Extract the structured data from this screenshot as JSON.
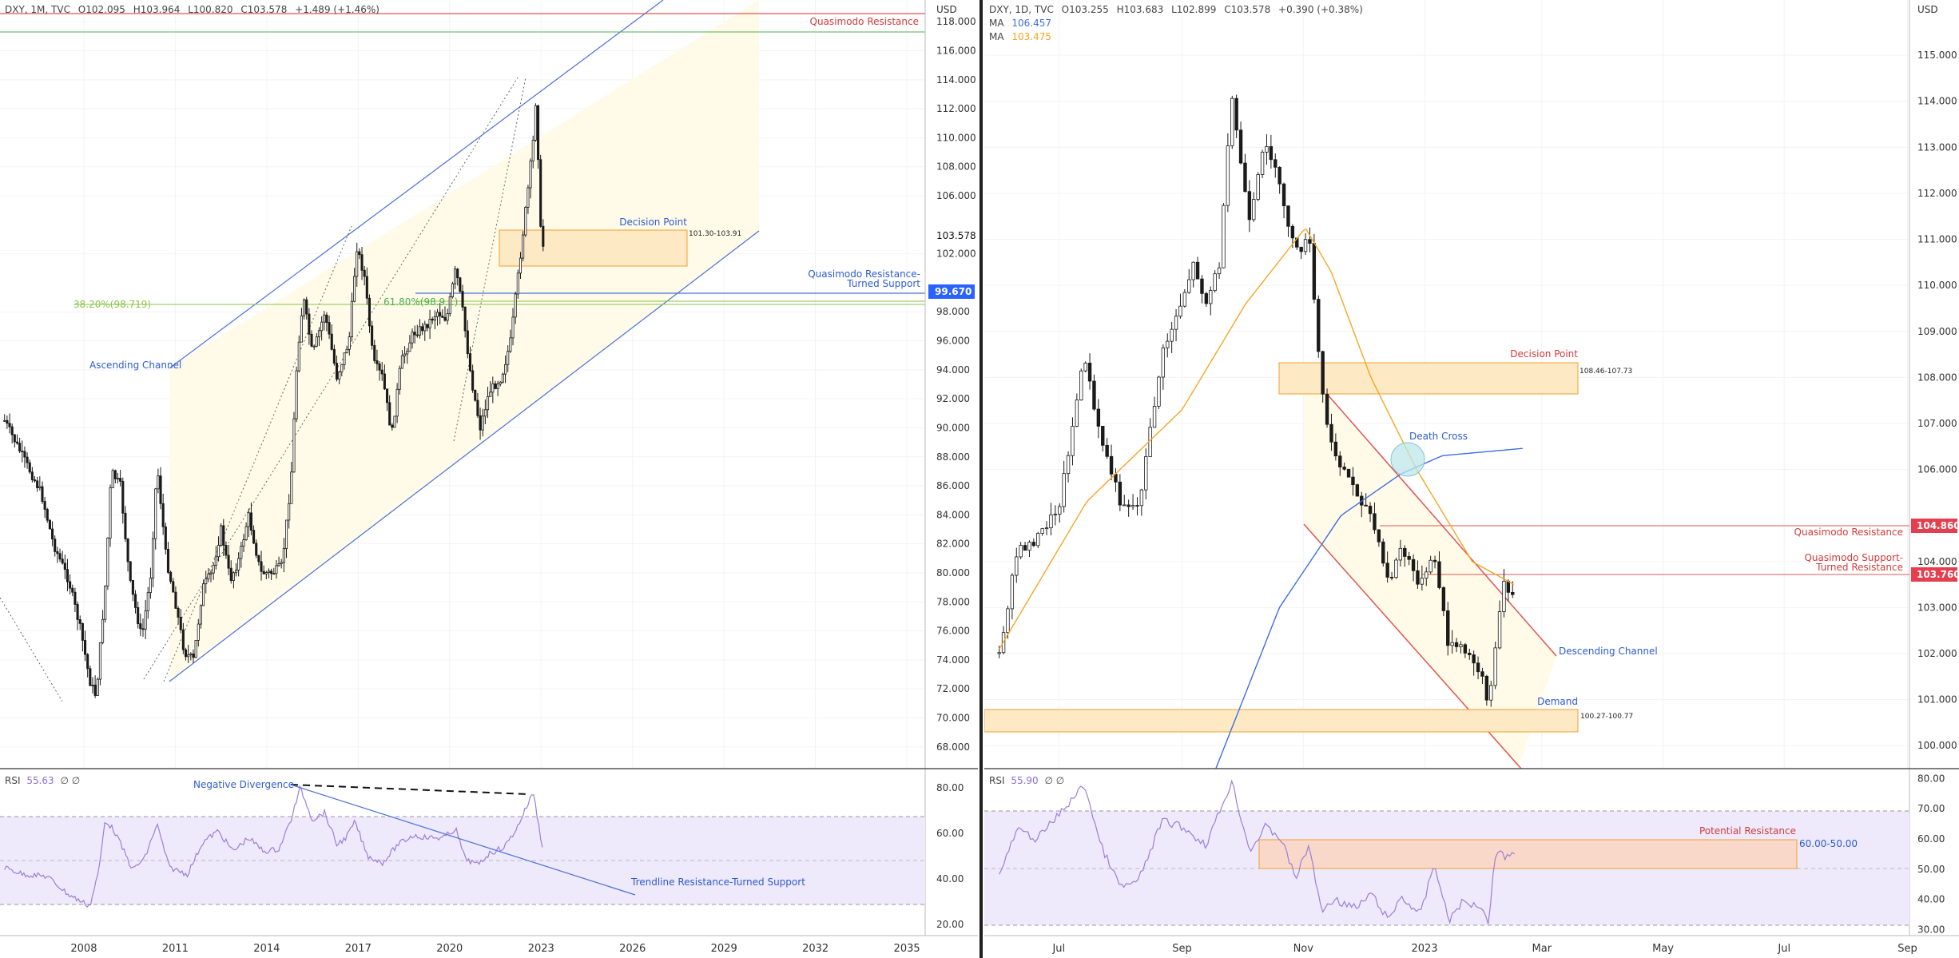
{
  "colors": {
    "candle": "#1a1a1a",
    "fib": "#8bc34a",
    "blue_line": "#4a6fd6",
    "red_line": "#e05555",
    "zone_fill": "#fde9c4",
    "zone_stroke": "#f0a030",
    "channel_fill": "#fffbe8",
    "rsi_band": "#eee9fb",
    "rsi_line": "#9b7fd9",
    "ma_blue": "#3d6fe0",
    "ma_orange": "#f5a623",
    "label_blue": "#2f5bd3",
    "label_red": "#d23b3b",
    "badge_blue": "#2962ff",
    "badge_red": "#e53e4f"
  },
  "left": {
    "header": {
      "symbol": "DXY, 1M, TVC",
      "o": "O102.095",
      "h": "H103.964",
      "l": "L100.820",
      "c": "C103.578",
      "chg": "+1.489 (+1.46%)"
    },
    "axis_unit": "USD",
    "price_badge": "103.578",
    "support_badge": "99.670",
    "labels": {
      "qm_resistance": "Quasimodo Resistance",
      "decision_point": "Decision Point",
      "decision_range": "101.30-103.91",
      "qm_turned_1": "Quasimodo Resistance-",
      "qm_turned_2": "Turned Support",
      "fib38": "38.20%(98.719)",
      "fib61": "61.80%(98.9...)",
      "ascending": "Ascending Channel",
      "neg_div": "Negative Divergence",
      "trend_rs": "Trendline Resistance-Turned Support"
    },
    "rsi_header": {
      "name": "RSI",
      "value": "55.63",
      "extra": "∅ ∅"
    }
  },
  "right": {
    "header": {
      "symbol": "DXY, 1D, TVC",
      "o": "O103.255",
      "h": "H103.683",
      "l": "L102.899",
      "c": "C103.578",
      "chg": "+0.390 (+0.38%)"
    },
    "ma1": {
      "name": "MA",
      "value": "106.457"
    },
    "ma2": {
      "name": "MA",
      "value": "103.475"
    },
    "axis_unit": "USD",
    "badge_qm": "104.860",
    "badge_qm_turned": "103.760",
    "labels": {
      "decision_point": "Decision Point",
      "decision_range": "108.46-107.73",
      "death_cross": "Death Cross",
      "qm_resistance": "Quasimodo Resistance",
      "qm_support_1": "Quasimodo Support-",
      "qm_support_2": "Turned Resistance",
      "desc_channel": "Descending Channel",
      "demand": "Demand",
      "demand_range": "100.27-100.77",
      "potential_res": "Potential Resistance",
      "rsi_range": "60.00-50.00"
    },
    "rsi_header": {
      "name": "RSI",
      "value": "55.90",
      "extra": "∅ ∅"
    }
  },
  "chart_data": [
    {
      "type": "line",
      "title": "DXY, 1M, TVC",
      "xlabel": "",
      "ylabel": "",
      "x_ticks": [
        "2008",
        "2011",
        "2014",
        "2017",
        "2020",
        "2023",
        "2026",
        "2029",
        "2032",
        "2035"
      ],
      "y_ticks": [
        "68.000",
        "70.000",
        "72.000",
        "74.000",
        "76.000",
        "78.000",
        "80.000",
        "82.000",
        "84.000",
        "86.000",
        "88.000",
        "90.000",
        "92.000",
        "94.000",
        "96.000",
        "98.000",
        "102.000",
        "106.000",
        "108.000",
        "110.000",
        "112.000",
        "114.000",
        "116.000",
        "118.000"
      ],
      "ylim": [
        66.5,
        119.5
      ],
      "series": [
        {
          "values": [
            [
              2005.4,
              90.5
            ],
            [
              2006.0,
              88.0
            ],
            [
              2006.6,
              85.5
            ],
            [
              2007.0,
              82.0
            ],
            [
              2007.5,
              79.5
            ],
            [
              2007.9,
              76.0
            ],
            [
              2008.2,
              72.5
            ],
            [
              2008.4,
              71.5
            ],
            [
              2008.7,
              79.0
            ],
            [
              2008.9,
              87.0
            ],
            [
              2009.2,
              86.0
            ],
            [
              2009.5,
              79.5
            ],
            [
              2009.9,
              75.5
            ],
            [
              2010.2,
              80.0
            ],
            [
              2010.4,
              87.5
            ],
            [
              2010.7,
              81.0
            ],
            [
              2011.0,
              78.0
            ],
            [
              2011.3,
              74.5
            ],
            [
              2011.6,
              74.0
            ],
            [
              2011.9,
              79.0
            ],
            [
              2012.2,
              80.0
            ],
            [
              2012.5,
              83.0
            ],
            [
              2012.8,
              79.5
            ],
            [
              2013.1,
              81.0
            ],
            [
              2013.4,
              84.0
            ],
            [
              2013.8,
              80.0
            ],
            [
              2014.2,
              80.0
            ],
            [
              2014.5,
              80.5
            ],
            [
              2014.8,
              86.5
            ],
            [
              2015.0,
              95.0
            ],
            [
              2015.2,
              99.0
            ],
            [
              2015.5,
              95.0
            ],
            [
              2015.9,
              98.0
            ],
            [
              2016.3,
              93.5
            ],
            [
              2016.7,
              96.0
            ],
            [
              2016.95,
              102.5
            ],
            [
              2017.2,
              100.5
            ],
            [
              2017.5,
              94.5
            ],
            [
              2017.8,
              93.5
            ],
            [
              2018.1,
              89.5
            ],
            [
              2018.4,
              94.5
            ],
            [
              2018.8,
              96.5
            ],
            [
              2019.2,
              97.0
            ],
            [
              2019.6,
              98.0
            ],
            [
              2019.9,
              97.5
            ],
            [
              2020.2,
              101.0
            ],
            [
              2020.4,
              98.5
            ],
            [
              2020.7,
              93.5
            ],
            [
              2021.0,
              90.0
            ],
            [
              2021.3,
              92.5
            ],
            [
              2021.7,
              93.5
            ],
            [
              2022.0,
              96.0
            ],
            [
              2022.3,
              101.5
            ],
            [
              2022.6,
              107.0
            ],
            [
              2022.75,
              110.0
            ],
            [
              2022.85,
              113.5
            ],
            [
              2022.95,
              104.5
            ],
            [
              2023.05,
              102.0
            ],
            [
              2023.1,
              103.6
            ]
          ]
        }
      ],
      "rsi": {
        "y_ticks": [
          "20.00",
          "40.00",
          "60.00",
          "80.00"
        ],
        "ylim": [
          15,
          88
        ],
        "values": [
          [
            2005.4,
            45
          ],
          [
            2006.0,
            42
          ],
          [
            2006.8,
            41
          ],
          [
            2007.5,
            33
          ],
          [
            2008.2,
            28
          ],
          [
            2008.5,
            44
          ],
          [
            2008.7,
            66
          ],
          [
            2009.0,
            61
          ],
          [
            2009.6,
            44
          ],
          [
            2010.0,
            49
          ],
          [
            2010.4,
            64
          ],
          [
            2010.8,
            45
          ],
          [
            2011.4,
            42
          ],
          [
            2011.9,
            56
          ],
          [
            2012.4,
            61
          ],
          [
            2012.9,
            52
          ],
          [
            2013.4,
            58
          ],
          [
            2013.9,
            52
          ],
          [
            2014.4,
            53
          ],
          [
            2014.8,
            66
          ],
          [
            2015.1,
            80
          ],
          [
            2015.5,
            66
          ],
          [
            2015.9,
            69
          ],
          [
            2016.3,
            55
          ],
          [
            2016.6,
            58
          ],
          [
            2016.9,
            65
          ],
          [
            2017.3,
            50
          ],
          [
            2017.8,
            47
          ],
          [
            2018.3,
            55
          ],
          [
            2018.8,
            59
          ],
          [
            2019.3,
            58
          ],
          [
            2019.8,
            58
          ],
          [
            2020.2,
            62
          ],
          [
            2020.5,
            49
          ],
          [
            2020.9,
            46
          ],
          [
            2021.3,
            51
          ],
          [
            2021.8,
            54
          ],
          [
            2022.2,
            62
          ],
          [
            2022.5,
            71
          ],
          [
            2022.75,
            78
          ],
          [
            2022.95,
            61
          ],
          [
            2023.05,
            54
          ],
          [
            2023.1,
            56
          ]
        ]
      }
    },
    {
      "type": "line",
      "title": "DXY, 1D, TVC",
      "xlabel": "",
      "ylabel": "",
      "x_ticks": [
        "Jul",
        "Sep",
        "Nov",
        "2023",
        "Mar",
        "May",
        "Jul",
        "Sep"
      ],
      "y_ticks": [
        "100.000",
        "101.000",
        "102.000",
        "103.000",
        "104.000",
        "106.000",
        "107.000",
        "108.000",
        "109.000",
        "110.000",
        "111.000",
        "112.000",
        "113.000",
        "114.000",
        "115.000"
      ],
      "ylim": [
        99.5,
        116.2
      ],
      "series": [
        {
          "values": [
            [
              "2022-06-01",
              102.0
            ],
            [
              "2022-06-10",
              104.2
            ],
            [
              "2022-06-20",
              104.5
            ],
            [
              "2022-07-01",
              105.2
            ],
            [
              "2022-07-14",
              108.5
            ],
            [
              "2022-07-20",
              107.0
            ],
            [
              "2022-08-01",
              105.3
            ],
            [
              "2022-08-10",
              105.2
            ],
            [
              "2022-08-22",
              108.5
            ],
            [
              "2022-09-01",
              109.7
            ],
            [
              "2022-09-07",
              110.5
            ],
            [
              "2022-09-13",
              109.6
            ],
            [
              "2022-09-20",
              110.5
            ],
            [
              "2022-09-26",
              114.1
            ],
            [
              "2022-10-05",
              111.3
            ],
            [
              "2022-10-13",
              113.2
            ],
            [
              "2022-10-21",
              112.0
            ],
            [
              "2022-10-28",
              110.7
            ],
            [
              "2022-11-04",
              111.0
            ],
            [
              "2022-11-10",
              107.8
            ],
            [
              "2022-11-15",
              106.5
            ],
            [
              "2022-11-28",
              105.5
            ],
            [
              "2022-12-05",
              105.0
            ],
            [
              "2022-12-14",
              103.5
            ],
            [
              "2022-12-20",
              104.3
            ],
            [
              "2022-12-30",
              103.5
            ],
            [
              "2023-01-06",
              104.1
            ],
            [
              "2023-01-13",
              102.2
            ],
            [
              "2023-01-20",
              102.1
            ],
            [
              "2023-01-30",
              101.6
            ],
            [
              "2023-02-02",
              100.8
            ],
            [
              "2023-02-10",
              103.6
            ],
            [
              "2023-02-14",
              103.3
            ],
            [
              "2023-02-16",
              103.58
            ]
          ]
        },
        {
          "name": "MA",
          "values": [
            [
              "2022-09-18",
              99.5
            ],
            [
              "2022-10-20",
              103.0
            ],
            [
              "2022-11-20",
              105.0
            ],
            [
              "2022-12-20",
              105.9
            ],
            [
              "2023-01-10",
              106.3
            ],
            [
              "2023-02-20",
              106.46
            ]
          ]
        },
        {
          "name": "MA",
          "values": [
            [
              "2022-06-01",
              102.1
            ],
            [
              "2022-07-15",
              105.3
            ],
            [
              "2022-09-01",
              107.3
            ],
            [
              "2022-10-03",
              109.6
            ],
            [
              "2022-11-02",
              111.25
            ],
            [
              "2022-11-15",
              110.3
            ],
            [
              "2022-12-05",
              108.0
            ],
            [
              "2022-12-28",
              106.0
            ],
            [
              "2023-01-25",
              104.0
            ],
            [
              "2023-02-16",
              103.475
            ]
          ]
        }
      ],
      "rsi": {
        "y_ticks": [
          "30.00",
          "40.00",
          "50.00",
          "60.00",
          "70.00",
          "80.00"
        ],
        "ylim": [
          28,
          83
        ],
        "values": [
          [
            "2022-06-01",
            48
          ],
          [
            "2022-06-10",
            63
          ],
          [
            "2022-06-20",
            60
          ],
          [
            "2022-07-01",
            68
          ],
          [
            "2022-07-14",
            78
          ],
          [
            "2022-07-22",
            58
          ],
          [
            "2022-08-01",
            44
          ],
          [
            "2022-08-10",
            46
          ],
          [
            "2022-08-22",
            66
          ],
          [
            "2022-09-01",
            64
          ],
          [
            "2022-09-13",
            58
          ],
          [
            "2022-09-26",
            79
          ],
          [
            "2022-10-05",
            56
          ],
          [
            "2022-10-13",
            64
          ],
          [
            "2022-10-21",
            60
          ],
          [
            "2022-10-28",
            47
          ],
          [
            "2022-11-04",
            58
          ],
          [
            "2022-11-10",
            36
          ],
          [
            "2022-11-16",
            40
          ],
          [
            "2022-11-28",
            37
          ],
          [
            "2022-12-05",
            42
          ],
          [
            "2022-12-14",
            33
          ],
          [
            "2022-12-20",
            41
          ],
          [
            "2022-12-30",
            35
          ],
          [
            "2023-01-06",
            52
          ],
          [
            "2023-01-13",
            33
          ],
          [
            "2023-01-20",
            39
          ],
          [
            "2023-01-30",
            38
          ],
          [
            "2023-02-02",
            32
          ],
          [
            "2023-02-06",
            57
          ],
          [
            "2023-02-10",
            54
          ],
          [
            "2023-02-16",
            56
          ]
        ]
      }
    }
  ]
}
